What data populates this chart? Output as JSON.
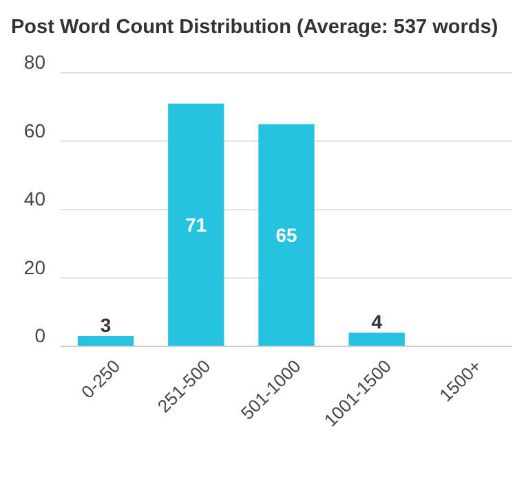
{
  "chart_data": {
    "type": "bar",
    "title": "Post Word Count Distribution (Average: 537 words)",
    "categories": [
      "0-250",
      "251-500",
      "501-1000",
      "1001-1500",
      "1500+"
    ],
    "values": [
      3,
      71,
      65,
      4,
      0
    ],
    "value_labels": [
      "3",
      "71",
      "65",
      "4",
      null
    ],
    "color": "#26c3e1",
    "ylim": [
      0,
      80
    ],
    "yticks": [
      0,
      20,
      40,
      60,
      80
    ],
    "grid": "y"
  }
}
